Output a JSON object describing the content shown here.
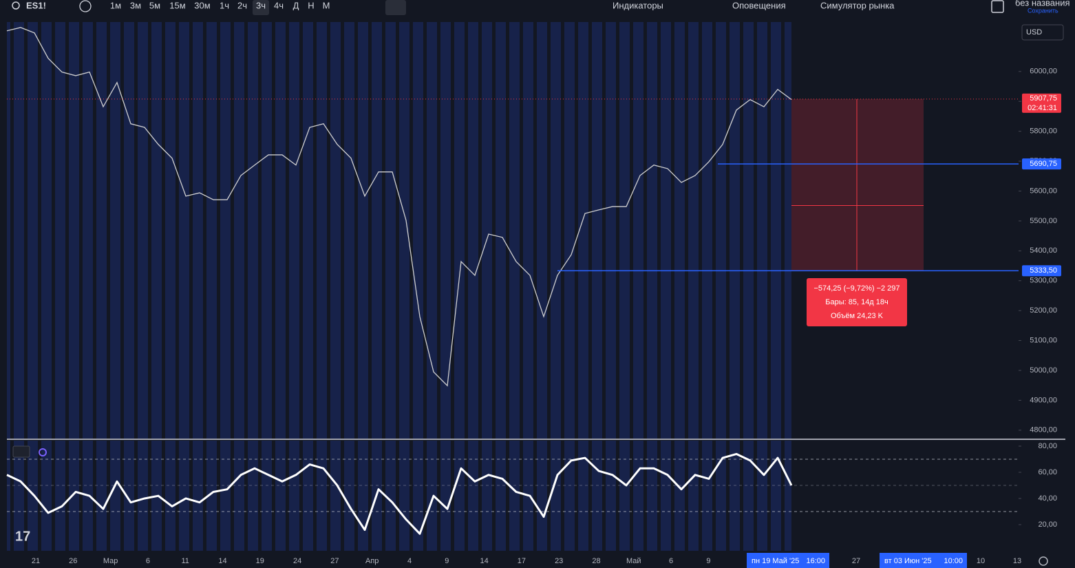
{
  "toolbar": {
    "symbol": "ES1!",
    "intervals": [
      "1м",
      "3м",
      "5м",
      "15м",
      "30м",
      "1ч",
      "2ч",
      "3ч",
      "4ч",
      "Д",
      "Н",
      "М"
    ],
    "active_interval": 7,
    "indicators": "Индикаторы",
    "alerts": "Оповещения",
    "replay": "Симулятор рынка",
    "layout_name": "без названия",
    "save": "Сохранить"
  },
  "chart_data": {
    "type": "line",
    "currency": "USD",
    "values": [
      6136,
      6147,
      6129,
      6044,
      5998,
      5986,
      5998,
      5882,
      5963,
      5825,
      5813,
      5756,
      5710,
      5583,
      5594,
      5571,
      5571,
      5652,
      5687,
      5721,
      5721,
      5687,
      5813,
      5825,
      5756,
      5710,
      5583,
      5664,
      5664,
      5502,
      5180,
      4995,
      4949,
      5364,
      5318,
      5456,
      5445,
      5364,
      5318,
      5180,
      5318,
      5387,
      5525,
      5537,
      5548,
      5548,
      5652,
      5687,
      5675,
      5629,
      5652,
      5698,
      5756,
      5871,
      5906,
      5882,
      5940,
      5906
    ],
    "color": "#d0d0d0",
    "ylim": [
      4772,
      6170
    ],
    "yticks": [
      {
        "value": 4800,
        "label": "4800,00"
      },
      {
        "value": 4900,
        "label": "4900,00"
      },
      {
        "value": 5000,
        "label": "5000,00"
      },
      {
        "value": 5100,
        "label": "5100,00"
      },
      {
        "value": 5200,
        "label": "5200,00"
      },
      {
        "value": 5300,
        "label": "5300,00"
      },
      {
        "value": 5400,
        "label": "5400,00"
      },
      {
        "value": 5500,
        "label": "5500,00"
      },
      {
        "value": 5600,
        "label": "5600,00"
      },
      {
        "value": 5700,
        "label": "5700,00"
      },
      {
        "value": 5800,
        "label": "5800,00"
      },
      {
        "value": 5900,
        "label": "5900,00"
      },
      {
        "value": 6000,
        "label": "6000,00"
      }
    ],
    "last_price": {
      "value": 5907.75,
      "label": "5907,75",
      "countdown": "02:41:31",
      "color": "#f23645"
    },
    "levels": [
      {
        "value": 5690.75,
        "label": "5690,75",
        "color": "#2962ff"
      },
      {
        "value": 5333.5,
        "label": "5333,50",
        "color": "#2962ff"
      }
    ],
    "measure": {
      "change": "−574,25 (−9,72%) −2 297",
      "bars": "Бары: 85, 14д 18ч",
      "volume": "Объём 24,23 K"
    },
    "xticks": [
      "21",
      "26",
      "Мар",
      "6",
      "11",
      "14",
      "19",
      "24",
      "27",
      "Апр",
      "4",
      "9",
      "14",
      "17",
      "23",
      "28",
      "Май",
      "6",
      "9"
    ],
    "xticks_future": [
      "27",
      "10",
      "13"
    ],
    "crosshair_start": "пн 19 Май '25",
    "crosshair_start_time": "16:00",
    "crosshair_end": "вт 03 Июн '25",
    "crosshair_end_time": "10:00",
    "rsi": {
      "values": [
        58,
        53,
        42,
        29,
        34,
        45,
        42,
        32,
        53,
        37,
        40,
        42,
        34,
        40,
        37,
        45,
        47,
        58,
        63,
        58,
        53,
        58,
        66,
        63,
        50,
        32,
        16,
        47,
        37,
        24,
        13,
        42,
        32,
        63,
        53,
        58,
        55,
        45,
        42,
        26,
        58,
        69,
        71,
        61,
        58,
        50,
        63,
        63,
        58,
        47,
        58,
        55,
        71,
        74,
        69,
        58,
        71,
        50
      ],
      "color": "#ffffff",
      "ylim": [
        0,
        84.2
      ],
      "yticks": [
        {
          "value": 20,
          "label": "20,00"
        },
        {
          "value": 40,
          "label": "40,00"
        },
        {
          "value": 60,
          "label": "60,00"
        },
        {
          "value": 80,
          "label": "80,00"
        }
      ],
      "bands": [
        70,
        50,
        30
      ]
    }
  }
}
